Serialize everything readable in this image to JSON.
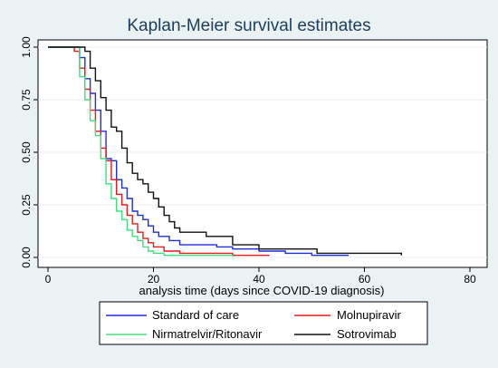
{
  "chart_data": {
    "type": "line",
    "step": true,
    "title": "Kaplan-Meier survival estimates",
    "xlabel": "analysis time (days since COVID-19 diagnosis)",
    "ylabel": "",
    "xlim": [
      0,
      80
    ],
    "ylim": [
      0,
      1
    ],
    "xticks": [
      "0",
      "20",
      "40",
      "60",
      "80"
    ],
    "yticks": [
      "0.00",
      "0.25",
      "0.50",
      "0.75",
      "1.00"
    ],
    "grid": "horizontal",
    "legend_position": "bottom",
    "series": [
      {
        "name": "Standard of care",
        "color": "#1f2fd6",
        "points": [
          [
            0,
            1.0
          ],
          [
            6,
            0.95
          ],
          [
            7,
            0.85
          ],
          [
            8,
            0.78
          ],
          [
            9,
            0.7
          ],
          [
            10,
            0.6
          ],
          [
            11,
            0.47
          ],
          [
            12,
            0.46
          ],
          [
            13,
            0.37
          ],
          [
            14,
            0.33
          ],
          [
            15,
            0.28
          ],
          [
            16,
            0.22
          ],
          [
            17,
            0.2
          ],
          [
            18,
            0.18
          ],
          [
            19,
            0.15
          ],
          [
            20,
            0.12
          ],
          [
            21,
            0.1
          ],
          [
            23,
            0.08
          ],
          [
            25,
            0.06
          ],
          [
            30,
            0.06
          ],
          [
            32,
            0.05
          ],
          [
            35,
            0.04
          ],
          [
            40,
            0.03
          ],
          [
            45,
            0.02
          ],
          [
            50,
            0.01
          ],
          [
            57,
            0.01
          ]
        ]
      },
      {
        "name": "Molnupiravir",
        "color": "#e41a1c",
        "points": [
          [
            0,
            1.0
          ],
          [
            5,
            0.98
          ],
          [
            6,
            0.9
          ],
          [
            7,
            0.8
          ],
          [
            8,
            0.7
          ],
          [
            9,
            0.6
          ],
          [
            10,
            0.52
          ],
          [
            11,
            0.46
          ],
          [
            12,
            0.37
          ],
          [
            13,
            0.3
          ],
          [
            14,
            0.25
          ],
          [
            15,
            0.2
          ],
          [
            16,
            0.16
          ],
          [
            17,
            0.12
          ],
          [
            18,
            0.09
          ],
          [
            19,
            0.07
          ],
          [
            20,
            0.05
          ],
          [
            22,
            0.03
          ],
          [
            25,
            0.02
          ],
          [
            30,
            0.02
          ],
          [
            35,
            0.01
          ],
          [
            42,
            0.01
          ]
        ]
      },
      {
        "name": "Nirmatrelvir/Ritonavir",
        "color": "#3ee07c",
        "points": [
          [
            0,
            1.0
          ],
          [
            6,
            0.86
          ],
          [
            7,
            0.75
          ],
          [
            8,
            0.65
          ],
          [
            9,
            0.58
          ],
          [
            10,
            0.47
          ],
          [
            11,
            0.35
          ],
          [
            12,
            0.28
          ],
          [
            13,
            0.22
          ],
          [
            14,
            0.18
          ],
          [
            15,
            0.13
          ],
          [
            16,
            0.1
          ],
          [
            17,
            0.08
          ],
          [
            18,
            0.05
          ],
          [
            19,
            0.03
          ],
          [
            20,
            0.02
          ],
          [
            22,
            0.01
          ],
          [
            35,
            0.01
          ]
        ]
      },
      {
        "name": "Sotrovimab",
        "color": "#111111",
        "points": [
          [
            0,
            1.0
          ],
          [
            7,
            0.98
          ],
          [
            8,
            0.9
          ],
          [
            9,
            0.84
          ],
          [
            10,
            0.76
          ],
          [
            11,
            0.7
          ],
          [
            12,
            0.62
          ],
          [
            13,
            0.6
          ],
          [
            14,
            0.52
          ],
          [
            15,
            0.45
          ],
          [
            16,
            0.4
          ],
          [
            17,
            0.37
          ],
          [
            18,
            0.35
          ],
          [
            19,
            0.31
          ],
          [
            20,
            0.28
          ],
          [
            21,
            0.24
          ],
          [
            22,
            0.2
          ],
          [
            23,
            0.17
          ],
          [
            24,
            0.14
          ],
          [
            25,
            0.12
          ],
          [
            30,
            0.1
          ],
          [
            35,
            0.06
          ],
          [
            40,
            0.04
          ],
          [
            51,
            0.02
          ],
          [
            67,
            0.01
          ]
        ]
      }
    ]
  }
}
